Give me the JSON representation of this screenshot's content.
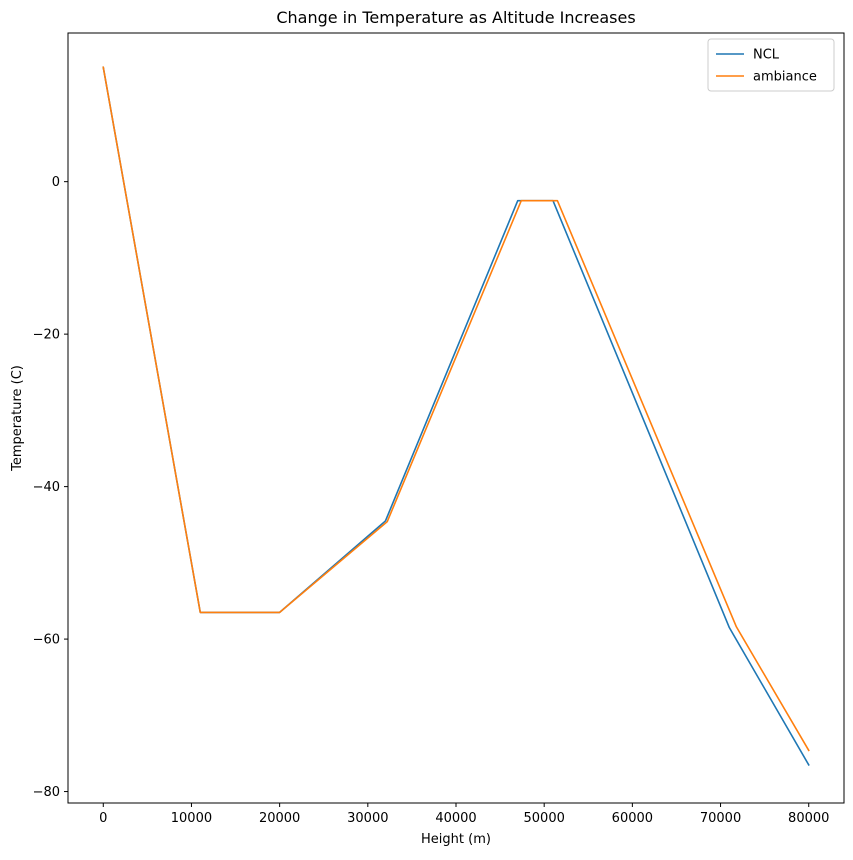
{
  "chart_data": {
    "type": "line",
    "title": "Change in Temperature as Altitude Increases",
    "xlabel": "Height (m)",
    "ylabel": "Temperature (C)",
    "xlim": [
      -4000,
      84000
    ],
    "ylim": [
      -81.5,
      19.5
    ],
    "xticks": [
      0,
      10000,
      20000,
      30000,
      40000,
      50000,
      60000,
      70000,
      80000
    ],
    "xtick_labels": [
      "0",
      "10000",
      "20000",
      "30000",
      "40000",
      "50000",
      "60000",
      "70000",
      "80000"
    ],
    "yticks": [
      0,
      -20,
      -40,
      -60,
      -80
    ],
    "ytick_labels": [
      "0",
      "−20",
      "−40",
      "−60",
      "−80"
    ],
    "grid": false,
    "legend_position": "top-right",
    "series": [
      {
        "name": "NCL",
        "color": "#1f77b4",
        "x": [
          0,
          11000,
          20000,
          32000,
          47000,
          51000,
          71000,
          80000
        ],
        "y": [
          15,
          -56.5,
          -56.5,
          -44.5,
          -2.5,
          -2.5,
          -58.5,
          -76.5
        ]
      },
      {
        "name": "ambiance",
        "color": "#ff7f0e",
        "x": [
          0,
          11000,
          20000,
          32200,
          47400,
          51500,
          71800,
          80000
        ],
        "y": [
          15,
          -56.5,
          -56.5,
          -44.6,
          -2.5,
          -2.5,
          -58.4,
          -74.6
        ]
      }
    ]
  }
}
